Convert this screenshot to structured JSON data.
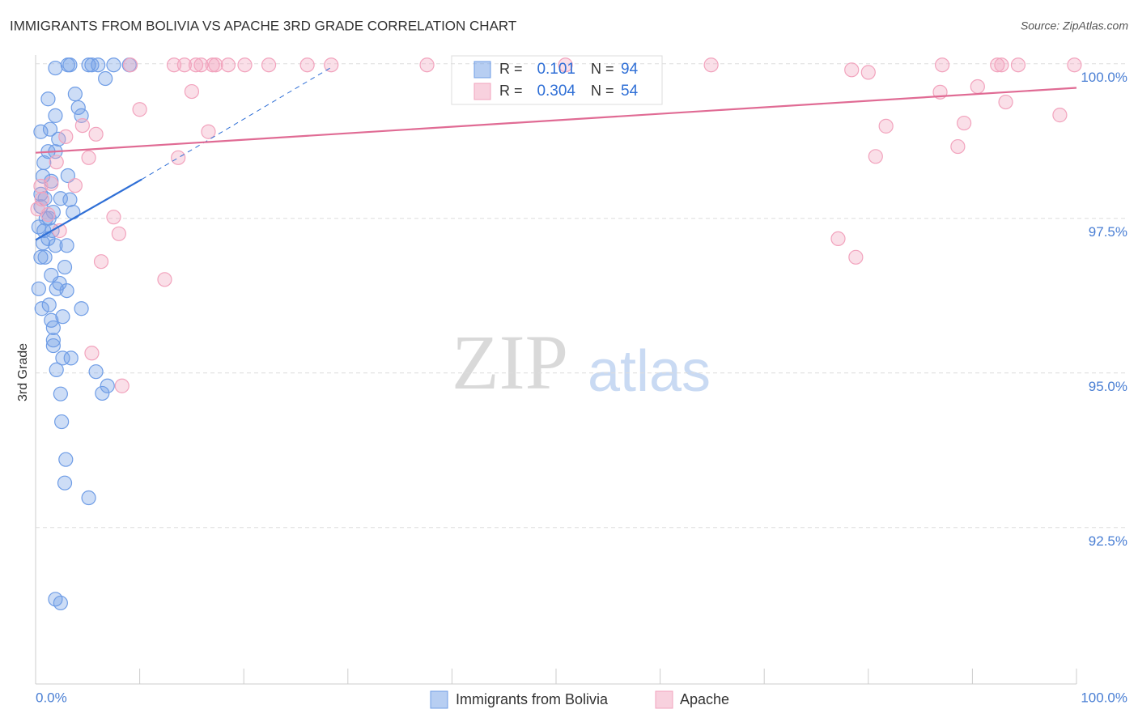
{
  "chart_data": {
    "type": "scatter",
    "title": "IMMIGRANTS FROM BOLIVIA VS APACHE 3RD GRADE CORRELATION CHART",
    "source": "Source: ZipAtlas.com",
    "y_label": "3rd Grade",
    "watermark": [
      "ZIP",
      "atlas"
    ],
    "r_label": "R =",
    "n_label": "N =",
    "xlim": [
      0,
      100
    ],
    "ylim": [
      89.97,
      100.14
    ],
    "xticks": [
      {
        "value": 0,
        "label": "0.0%"
      },
      {
        "value": 100,
        "label": "100.0%"
      }
    ],
    "xminor_ticks": [
      10,
      20,
      30,
      40,
      50,
      60,
      70,
      80,
      90
    ],
    "yticks": [
      {
        "value": 100,
        "label": "100.0%"
      },
      {
        "value": 97.5,
        "label": "97.5%"
      },
      {
        "value": 95,
        "label": "95.0%"
      },
      {
        "value": 92.5,
        "label": "92.5%"
      }
    ],
    "grid": true,
    "series": [
      {
        "name": "Immigrants from Bolivia",
        "color": "#6f9de6",
        "line_color": "#2f6fd6",
        "r": 0.101,
        "n": 94,
        "trend": {
          "x": [
            0,
            10.2,
            28.5
          ],
          "values": [
            97.15,
            98.13,
            99.95
          ]
        },
        "x": [
          3.1,
          3.3,
          5.1,
          5.4,
          6.0,
          7.5,
          9.0,
          1.9,
          6.7,
          3.8,
          1.2,
          4.1,
          1.9,
          4.4,
          0.5,
          1.4,
          2.2,
          1.2,
          1.9,
          0.8,
          0.7,
          3.1,
          1.5,
          0.5,
          0.9,
          2.4,
          3.3,
          0.5,
          1.7,
          3.6,
          1.0,
          1.3,
          0.3,
          0.8,
          1.6,
          1.2,
          0.7,
          3.0,
          1.9,
          0.5,
          0.9,
          2.8,
          1.5,
          2.3,
          2.0,
          3.0,
          0.3,
          1.3,
          0.6,
          4.4,
          2.6,
          1.5,
          1.7,
          1.7,
          1.7,
          2.6,
          3.4,
          2.0,
          5.8,
          2.4,
          6.4,
          6.9,
          2.5,
          2.9,
          2.8,
          5.1,
          1.9,
          2.4
        ],
        "values": [
          99.98,
          99.98,
          99.98,
          99.98,
          99.98,
          99.98,
          99.98,
          99.93,
          99.76,
          99.51,
          99.43,
          99.29,
          99.16,
          99.16,
          98.9,
          98.94,
          98.78,
          98.58,
          98.58,
          98.4,
          98.18,
          98.19,
          98.1,
          97.89,
          97.82,
          97.82,
          97.8,
          97.69,
          97.6,
          97.6,
          97.5,
          97.5,
          97.36,
          97.3,
          97.3,
          97.17,
          97.1,
          97.06,
          97.06,
          96.87,
          96.87,
          96.71,
          96.58,
          96.45,
          96.36,
          96.33,
          96.36,
          96.1,
          96.04,
          96.04,
          95.91,
          95.85,
          95.73,
          95.53,
          95.44,
          95.24,
          95.24,
          95.05,
          95.02,
          94.66,
          94.67,
          94.79,
          94.21,
          93.6,
          93.22,
          92.98,
          91.34,
          91.28
        ]
      },
      {
        "name": "Apache",
        "color": "#f2a3bd",
        "line_color": "#e06b94",
        "r": 0.304,
        "n": 54,
        "trend": {
          "x": [
            0,
            100
          ],
          "values": [
            98.56,
            99.61
          ]
        },
        "x": [
          9.1,
          13.3,
          14.3,
          15.4,
          15.9,
          17.0,
          17.3,
          18.5,
          20.1,
          22.4,
          26.1,
          28.4,
          37.6,
          50.9,
          64.9,
          87.1,
          92.4,
          92.8,
          94.4,
          99.8,
          78.4,
          80.0,
          15.0,
          10.0,
          90.5,
          86.9,
          93.2,
          98.4,
          4.5,
          5.8,
          16.6,
          81.7,
          89.2,
          2.9,
          88.6,
          80.7,
          5.1,
          13.7,
          2.0,
          1.5,
          3.8,
          0.6,
          7.5,
          8.0,
          6.3,
          12.4,
          77.1,
          78.8,
          5.4,
          8.3,
          0.2,
          1.2,
          0.5,
          2.3
        ],
        "values": [
          99.98,
          99.98,
          99.98,
          99.98,
          99.98,
          99.98,
          99.98,
          99.98,
          99.98,
          99.98,
          99.98,
          99.98,
          99.98,
          99.98,
          99.98,
          99.98,
          99.98,
          99.98,
          99.98,
          99.98,
          99.9,
          99.86,
          99.55,
          99.26,
          99.63,
          99.54,
          99.38,
          99.17,
          99.0,
          98.86,
          98.9,
          98.99,
          99.04,
          98.82,
          98.66,
          98.5,
          98.48,
          98.48,
          98.41,
          98.06,
          98.03,
          97.81,
          97.52,
          97.25,
          96.8,
          96.51,
          97.17,
          96.87,
          95.32,
          94.79,
          97.65,
          97.56,
          98.02,
          97.3
        ]
      }
    ]
  }
}
